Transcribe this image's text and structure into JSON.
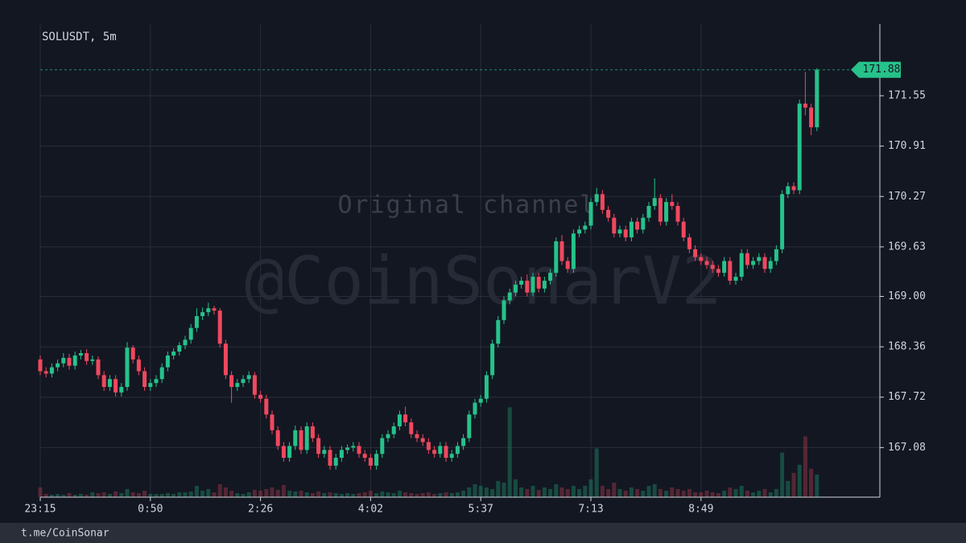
{
  "chart_data": {
    "type": "candlestick",
    "title": "SOLUSDT, 5m",
    "up_color": "#26c28a",
    "down_color": "#f0485f",
    "xlim": [
      0,
      144.86
    ],
    "xticks": [
      {
        "value": 0,
        "label": "23:15"
      },
      {
        "value": 19,
        "label": "0:50"
      },
      {
        "value": 38,
        "label": "2:26"
      },
      {
        "value": 57,
        "label": "4:02"
      },
      {
        "value": 76,
        "label": "5:37"
      },
      {
        "value": 95,
        "label": "7:13"
      },
      {
        "value": 114,
        "label": "8:49"
      }
    ],
    "ylim": [
      166.45,
      172.46
    ],
    "yticks": [
      167.08,
      167.72,
      168.36,
      {
        "value": 169,
        "label": "169.00"
      },
      169.63,
      170.27,
      170.91,
      171.55
    ],
    "grid": true,
    "last_price": 171.88,
    "watermarks": [
      "Original channel",
      "@CoinSonarV2"
    ],
    "open": [
      168.2,
      168.05,
      168.02,
      168.1,
      168.15,
      168.22,
      168.12,
      168.25,
      168.28,
      168.18,
      168.2,
      168.0,
      167.85,
      167.95,
      167.78,
      167.85,
      168.35,
      168.2,
      168.05,
      167.85,
      167.9,
      167.95,
      168.1,
      168.25,
      168.3,
      168.38,
      168.45,
      168.6,
      168.75,
      168.8,
      168.85,
      168.82,
      168.4,
      168.0,
      167.85,
      167.9,
      167.95,
      168.0,
      167.75,
      167.7,
      167.5,
      167.3,
      167.1,
      166.95,
      167.1,
      167.3,
      167.05,
      167.35,
      167.2,
      167.0,
      167.05,
      166.85,
      166.95,
      167.05,
      167.08,
      167.1,
      167.0,
      166.95,
      166.85,
      167.0,
      167.2,
      167.25,
      167.35,
      167.5,
      167.4,
      167.25,
      167.2,
      167.15,
      167.05,
      167.0,
      167.1,
      166.95,
      167.0,
      167.1,
      167.2,
      167.5,
      167.65,
      167.7,
      168.0,
      168.4,
      168.7,
      168.95,
      169.05,
      169.15,
      169.2,
      169.05,
      169.25,
      169.1,
      169.2,
      169.3,
      169.7,
      169.45,
      169.35,
      169.8,
      169.85,
      169.9,
      170.2,
      170.3,
      170.1,
      170.0,
      169.8,
      169.85,
      169.75,
      169.95,
      169.85,
      170.0,
      170.15,
      170.25,
      169.95,
      170.2,
      170.15,
      169.95,
      169.75,
      169.6,
      169.5,
      169.45,
      169.4,
      169.35,
      169.3,
      169.45,
      169.2,
      169.25,
      169.55,
      169.4,
      169.45,
      169.5,
      169.35,
      169.45,
      169.6,
      170.3,
      170.4,
      170.35,
      171.45,
      171.4,
      171.15
    ],
    "high": [
      168.25,
      168.1,
      168.15,
      168.2,
      168.28,
      168.27,
      168.3,
      168.32,
      168.33,
      168.25,
      168.24,
      168.05,
      168.0,
      168.0,
      167.9,
      168.42,
      168.38,
      168.25,
      168.1,
      167.95,
      168.0,
      168.15,
      168.3,
      168.34,
      168.42,
      168.5,
      168.65,
      168.85,
      168.86,
      168.92,
      168.88,
      168.85,
      168.45,
      168.05,
      167.95,
      168.0,
      168.05,
      168.04,
      167.8,
      167.75,
      167.55,
      167.35,
      167.15,
      167.15,
      167.36,
      167.35,
      167.4,
      167.4,
      167.25,
      167.1,
      167.1,
      167.0,
      167.1,
      167.12,
      167.15,
      167.15,
      167.05,
      167.0,
      167.05,
      167.25,
      167.3,
      167.4,
      167.55,
      167.6,
      167.45,
      167.3,
      167.25,
      167.2,
      167.1,
      167.15,
      167.15,
      167.05,
      167.15,
      167.25,
      167.55,
      167.7,
      167.75,
      168.05,
      168.45,
      168.75,
      169.0,
      169.1,
      169.2,
      169.25,
      169.28,
      169.3,
      169.3,
      169.25,
      169.35,
      169.75,
      169.78,
      169.5,
      169.85,
      169.9,
      169.95,
      170.25,
      170.38,
      170.35,
      170.15,
      170.05,
      169.9,
      169.9,
      170.0,
      170.0,
      170.05,
      170.2,
      170.5,
      170.3,
      170.25,
      170.3,
      170.2,
      170.0,
      169.8,
      169.65,
      169.55,
      169.5,
      169.45,
      169.4,
      169.5,
      169.5,
      169.3,
      169.6,
      169.6,
      169.5,
      169.55,
      169.55,
      169.5,
      169.65,
      170.35,
      170.45,
      170.45,
      171.5,
      171.85,
      171.45,
      171.9
    ],
    "low": [
      168.0,
      167.97,
      167.97,
      168.05,
      168.1,
      168.07,
      168.07,
      168.2,
      168.13,
      168.13,
      167.95,
      167.8,
      167.8,
      167.73,
      167.73,
      167.8,
      168.15,
      168.0,
      167.8,
      167.8,
      167.85,
      167.9,
      168.05,
      168.2,
      168.25,
      168.33,
      168.4,
      168.55,
      168.7,
      168.75,
      168.77,
      168.35,
      167.95,
      167.65,
      167.8,
      167.85,
      167.9,
      167.7,
      167.65,
      167.45,
      167.25,
      167.05,
      166.9,
      166.9,
      167.05,
      167.0,
      167.0,
      167.15,
      166.95,
      166.95,
      166.8,
      166.8,
      166.9,
      167.0,
      167.03,
      166.95,
      166.9,
      166.8,
      166.8,
      166.95,
      167.15,
      167.2,
      167.3,
      167.35,
      167.2,
      167.15,
      167.1,
      167.0,
      166.95,
      166.95,
      166.9,
      166.9,
      166.95,
      167.05,
      167.15,
      167.45,
      167.6,
      167.65,
      167.95,
      168.35,
      168.65,
      168.9,
      169.0,
      169.1,
      169.0,
      169.0,
      169.05,
      169.05,
      169.15,
      169.25,
      169.4,
      169.3,
      169.3,
      169.75,
      169.8,
      169.85,
      170.15,
      170.05,
      169.95,
      169.75,
      169.75,
      169.7,
      169.7,
      169.8,
      169.8,
      169.95,
      170.1,
      169.9,
      169.9,
      170.1,
      169.9,
      169.7,
      169.55,
      169.45,
      169.4,
      169.35,
      169.3,
      169.25,
      169.25,
      169.15,
      169.15,
      169.2,
      169.35,
      169.35,
      169.4,
      169.3,
      169.3,
      169.4,
      169.55,
      170.25,
      170.3,
      170.3,
      171.3,
      171.05,
      171.1
    ],
    "close": [
      168.05,
      168.02,
      168.1,
      168.15,
      168.22,
      168.12,
      168.25,
      168.28,
      168.18,
      168.2,
      168.0,
      167.85,
      167.95,
      167.78,
      167.85,
      168.35,
      168.2,
      168.05,
      167.85,
      167.9,
      167.95,
      168.1,
      168.25,
      168.3,
      168.38,
      168.45,
      168.6,
      168.75,
      168.8,
      168.85,
      168.82,
      168.4,
      168.0,
      167.85,
      167.9,
      167.95,
      168.0,
      167.75,
      167.7,
      167.5,
      167.3,
      167.1,
      166.95,
      167.1,
      167.3,
      167.05,
      167.35,
      167.2,
      167.0,
      167.05,
      166.85,
      166.95,
      167.05,
      167.08,
      167.1,
      167.0,
      166.95,
      166.85,
      167.0,
      167.2,
      167.25,
      167.35,
      167.5,
      167.4,
      167.25,
      167.2,
      167.15,
      167.05,
      167.0,
      167.1,
      166.95,
      167.0,
      167.1,
      167.2,
      167.5,
      167.65,
      167.7,
      168.0,
      168.4,
      168.7,
      168.95,
      169.05,
      169.15,
      169.2,
      169.05,
      169.25,
      169.1,
      169.2,
      169.3,
      169.7,
      169.45,
      169.35,
      169.8,
      169.85,
      169.9,
      170.2,
      170.3,
      170.1,
      170.0,
      169.8,
      169.85,
      169.75,
      169.95,
      169.85,
      170.0,
      170.15,
      170.25,
      169.95,
      170.2,
      170.15,
      169.95,
      169.75,
      169.6,
      169.5,
      169.45,
      169.4,
      169.35,
      169.3,
      169.45,
      169.2,
      169.25,
      169.55,
      169.4,
      169.45,
      169.5,
      169.35,
      169.45,
      169.6,
      170.3,
      170.4,
      170.35,
      171.45,
      171.4,
      171.15,
      171.88
    ],
    "volume": [
      12,
      4,
      3,
      4,
      3,
      5,
      3,
      4,
      3,
      6,
      5,
      6,
      4,
      7,
      5,
      10,
      6,
      5,
      8,
      4,
      4,
      4,
      5,
      4,
      6,
      6,
      7,
      14,
      8,
      10,
      6,
      16,
      12,
      8,
      5,
      4,
      6,
      9,
      8,
      10,
      12,
      9,
      15,
      8,
      7,
      8,
      6,
      5,
      7,
      5,
      6,
      5,
      4,
      5,
      4,
      5,
      6,
      8,
      5,
      7,
      6,
      5,
      8,
      6,
      5,
      4,
      5,
      6,
      4,
      5,
      6,
      5,
      6,
      8,
      12,
      16,
      14,
      12,
      10,
      20,
      18,
      111,
      22,
      12,
      10,
      14,
      9,
      12,
      10,
      16,
      12,
      10,
      14,
      10,
      14,
      22,
      60,
      14,
      10,
      18,
      10,
      8,
      12,
      10,
      8,
      14,
      16,
      10,
      8,
      12,
      10,
      8,
      10,
      6,
      6,
      8,
      6,
      5,
      8,
      12,
      10,
      14,
      8,
      6,
      8,
      10,
      6,
      10,
      55,
      20,
      30,
      40,
      75,
      35,
      28
    ]
  },
  "footer": "t.me/CoinSonar"
}
